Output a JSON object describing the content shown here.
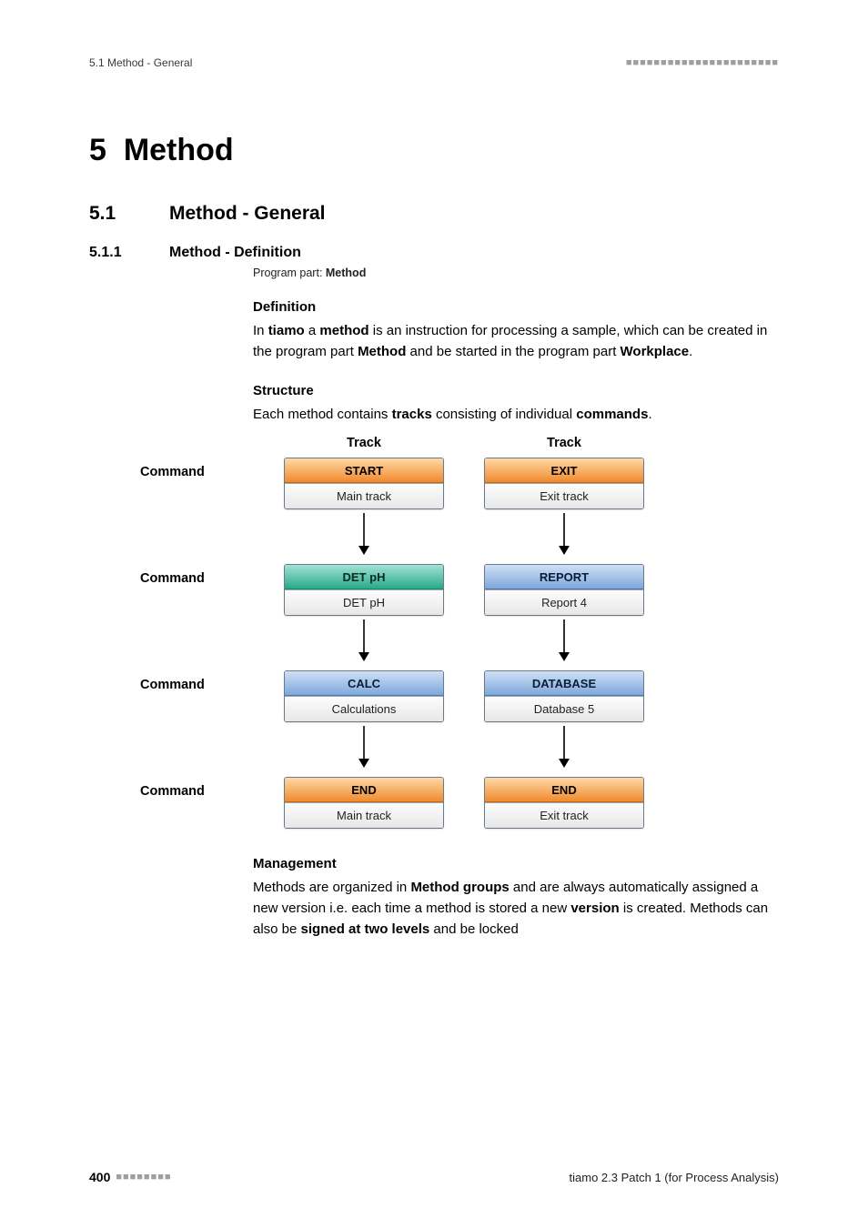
{
  "header": {
    "left": "5.1 Method - General",
    "right_dots": "■■■■■■■■■■■■■■■■■■■■■■"
  },
  "chapter": {
    "number": "5",
    "title": "Method"
  },
  "section": {
    "number": "5.1",
    "title": "Method - General"
  },
  "subsection": {
    "number": "5.1.1",
    "title": "Method - Definition"
  },
  "program_part": {
    "label": "Program part: ",
    "value": "Method"
  },
  "definition": {
    "heading": "Definition",
    "p1_a": "In ",
    "p1_b": "tiamo",
    "p1_c": " a ",
    "p1_d": "method",
    "p1_e": " is an instruction for processing a sample, which can be created in the program part ",
    "p1_f": "Method",
    "p1_g": " and be started in the program part ",
    "p1_h": "Workplace",
    "p1_i": "."
  },
  "structure": {
    "heading": "Structure",
    "p1_a": "Each method contains ",
    "p1_b": "tracks",
    "p1_c": " consisting of individual ",
    "p1_d": "commands",
    "p1_e": "."
  },
  "diagram": {
    "track_label_left": "Track",
    "track_label_right": "Track",
    "command_label": "Command",
    "rows": [
      {
        "left_head": "START",
        "left_sub": "Main track",
        "left_color": "orange",
        "right_head": "EXIT",
        "right_sub": "Exit track",
        "right_color": "orange"
      },
      {
        "left_head": "DET pH",
        "left_sub": "DET pH",
        "left_color": "teal",
        "right_head": "REPORT",
        "right_sub": "Report 4",
        "right_color": "blue"
      },
      {
        "left_head": "CALC",
        "left_sub": "Calculations",
        "left_color": "blue",
        "right_head": "DATABASE",
        "right_sub": "Database 5",
        "right_color": "blue"
      },
      {
        "left_head": "END",
        "left_sub": "Main track",
        "left_color": "orange",
        "right_head": "END",
        "right_sub": "Exit track",
        "right_color": "orange"
      }
    ],
    "arrow": {
      "height": 52,
      "color": "#000000",
      "stroke_width": 1.6
    }
  },
  "management": {
    "heading": "Management",
    "p1_a": "Methods are organized in ",
    "p1_b": "Method groups",
    "p1_c": " and are always automatically assigned a new version i.e. each time a method is stored a new ",
    "p1_d": "version",
    "p1_e": " is created. Methods can also be ",
    "p1_f": "signed at two levels",
    "p1_g": " and be locked"
  },
  "footer": {
    "page": "400",
    "dots": "■■■■■■■■",
    "right": "tiamo 2.3 Patch 1 (for Process Analysis)"
  },
  "colors": {
    "orange_top": "#ffd9a8",
    "orange_bottom": "#f08a2d",
    "teal_top": "#a0e3d4",
    "teal_bottom": "#2aa989",
    "blue_top": "#cfe0f6",
    "blue_bottom": "#7ea7da",
    "sub_top": "#fdfdfd",
    "sub_bottom": "#e7e7e7"
  }
}
